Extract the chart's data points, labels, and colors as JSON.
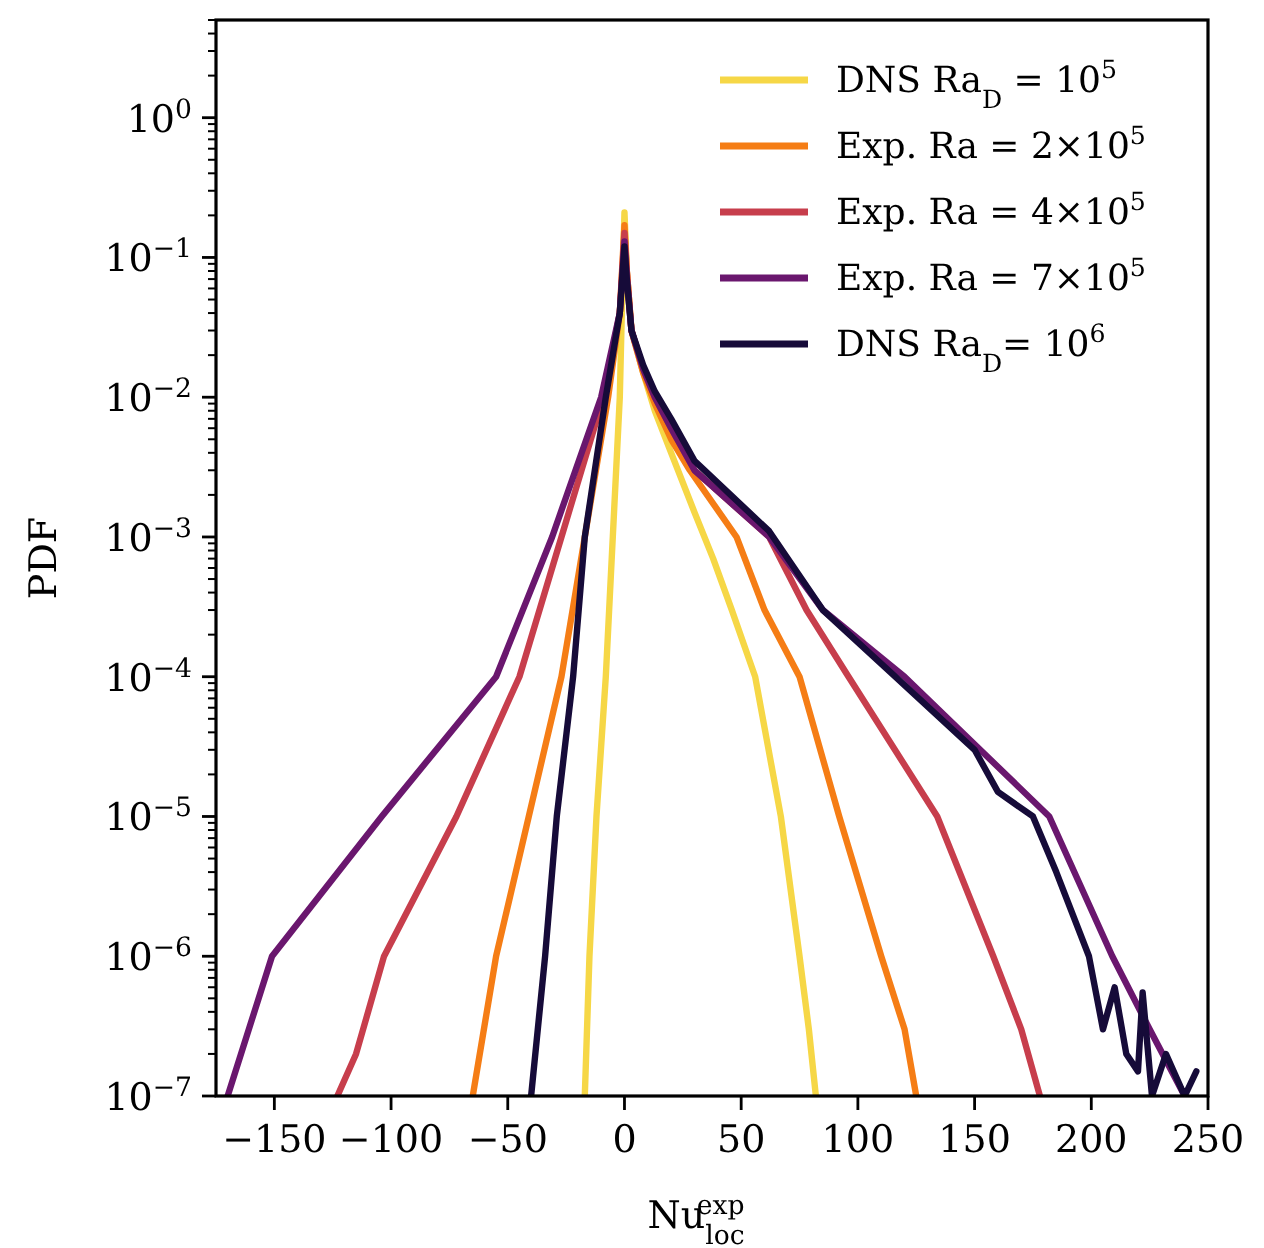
{
  "chart_data": {
    "type": "line",
    "xlabel": "Nu$_{loc}$$^{exp}$",
    "ylabel": "PDF",
    "log": "y",
    "legend": "top right",
    "grid": false,
    "line_style": "solid",
    "marker": "none",
    "xlim": [
      -175,
      250
    ],
    "xticks": [
      {
        "value": -150,
        "label": "−150"
      },
      {
        "value": -100,
        "label": "−100"
      },
      {
        "value": -50,
        "label": "−50"
      },
      0,
      50,
      100,
      150,
      200,
      250
    ],
    "ylim": [
      1e-07,
      5
    ],
    "yticks": [
      {
        "value": 1,
        "label": "10$^{0}$"
      },
      {
        "value": 0.1,
        "label": "10$^{−1}$"
      },
      {
        "value": 0.01,
        "label": "10$^{−2}$"
      },
      {
        "value": 0.001,
        "label": "10$^{−3}$"
      },
      {
        "value": 0.0001,
        "label": "10$^{−4}$"
      },
      {
        "value": 1e-05,
        "label": "10$^{−5}$"
      },
      {
        "value": 1e-06,
        "label": "10$^{−6}$"
      },
      {
        "value": 1e-07,
        "label": "10$^{−7}$"
      },
      {
        "value": 2e-07,
        "label": null
      },
      {
        "value": 3e-07,
        "label": null
      },
      {
        "value": 4e-07,
        "label": null
      },
      {
        "value": 5e-07,
        "label": null
      },
      {
        "value": 6e-07,
        "label": null
      },
      {
        "value": 7e-07,
        "label": null
      },
      {
        "value": 8e-07,
        "label": null
      },
      {
        "value": 9e-07,
        "label": null
      },
      {
        "value": 2e-06,
        "label": null
      },
      {
        "value": 3e-06,
        "label": null
      },
      {
        "value": 4e-06,
        "label": null
      },
      {
        "value": 5e-06,
        "label": null
      },
      {
        "value": 6e-06,
        "label": null
      },
      {
        "value": 7e-06,
        "label": null
      },
      {
        "value": 8e-06,
        "label": null
      },
      {
        "value": 9e-06,
        "label": null
      },
      {
        "value": 2e-05,
        "label": null
      },
      {
        "value": 3e-05,
        "label": null
      },
      {
        "value": 4e-05,
        "label": null
      },
      {
        "value": 5e-05,
        "label": null
      },
      {
        "value": 6e-05,
        "label": null
      },
      {
        "value": 7e-05,
        "label": null
      },
      {
        "value": 8e-05,
        "label": null
      },
      {
        "value": 9e-05,
        "label": null
      },
      {
        "value": 0.0002,
        "label": null
      },
      {
        "value": 0.0003,
        "label": null
      },
      {
        "value": 0.0004,
        "label": null
      },
      {
        "value": 0.0005,
        "label": null
      },
      {
        "value": 0.0006,
        "label": null
      },
      {
        "value": 0.0007,
        "label": null
      },
      {
        "value": 0.0008,
        "label": null
      },
      {
        "value": 0.0009,
        "label": null
      },
      {
        "value": 0.002,
        "label": null
      },
      {
        "value": 0.003,
        "label": null
      },
      {
        "value": 0.004,
        "label": null
      },
      {
        "value": 0.005,
        "label": null
      },
      {
        "value": 0.006,
        "label": null
      },
      {
        "value": 0.007,
        "label": null
      },
      {
        "value": 0.008,
        "label": null
      },
      {
        "value": 0.009,
        "label": null
      },
      {
        "value": 0.02,
        "label": null
      },
      {
        "value": 0.03,
        "label": null
      },
      {
        "value": 0.04,
        "label": null
      },
      {
        "value": 0.05,
        "label": null
      },
      {
        "value": 0.06,
        "label": null
      },
      {
        "value": 0.07,
        "label": null
      },
      {
        "value": 0.08,
        "label": null
      },
      {
        "value": 0.09,
        "label": null
      },
      {
        "value": 0.2,
        "label": null
      },
      {
        "value": 0.3,
        "label": null
      },
      {
        "value": 0.4,
        "label": null
      },
      {
        "value": 0.5,
        "label": null
      },
      {
        "value": 0.6,
        "label": null
      },
      {
        "value": 0.7,
        "label": null
      },
      {
        "value": 0.8,
        "label": null
      },
      {
        "value": 0.9,
        "label": null
      },
      {
        "value": 2,
        "label": null
      },
      {
        "value": 3,
        "label": null
      },
      {
        "value": 4,
        "label": null
      },
      {
        "value": 5,
        "label": null
      }
    ],
    "series": [
      {
        "name": "DNS Ra$_{D}$ = 10$^{5}$",
        "color": "#f6d746",
        "x": [
          -17,
          -15,
          -12,
          -8,
          -5,
          -2,
          -1,
          0,
          1,
          3,
          8,
          13,
          20,
          30,
          38,
          46,
          56,
          67,
          75,
          79,
          82
        ],
        "values": [
          1e-07,
          1e-06,
          1e-05,
          0.0001,
          0.001,
          0.01,
          0.05,
          0.21,
          0.08,
          0.03,
          0.015,
          0.008,
          0.004,
          0.0015,
          0.0007,
          0.0003,
          0.0001,
          1e-05,
          1e-06,
          3e-07,
          1e-07
        ]
      },
      {
        "name": "Exp. Ra = 2×10$^{5}$",
        "color": "#f57d15",
        "x": [
          -65,
          -55,
          -41,
          -27,
          -17,
          -7,
          -2,
          0,
          1,
          3,
          8,
          13,
          20,
          28,
          48,
          60,
          75,
          92,
          110,
          120,
          125
        ],
        "values": [
          1e-07,
          1e-06,
          1e-05,
          0.0001,
          0.001,
          0.01,
          0.04,
          0.17,
          0.08,
          0.03,
          0.015,
          0.009,
          0.005,
          0.003,
          0.001,
          0.0003,
          0.0001,
          1e-05,
          1e-06,
          3e-07,
          1e-07
        ]
      },
      {
        "name": "Exp. Ra = 4×10$^{5}$",
        "color": "#c73e4c",
        "x": [
          -123,
          -115,
          -103,
          -72,
          -45,
          -27,
          -9,
          -2,
          0,
          1,
          3,
          8,
          13,
          20,
          30,
          62,
          78,
          96,
          134,
          158,
          170,
          178
        ],
        "values": [
          1e-07,
          2e-07,
          1e-06,
          1e-05,
          0.0001,
          0.001,
          0.01,
          0.04,
          0.15,
          0.08,
          0.03,
          0.016,
          0.01,
          0.006,
          0.003,
          0.001,
          0.0003,
          0.0001,
          1e-05,
          1e-06,
          3e-07,
          1e-07
        ]
      },
      {
        "name": "Exp. Ra = 7×10$^{5}$",
        "color": "#6a176e",
        "x": [
          -170,
          -151,
          -104,
          -55,
          -31,
          -10,
          -2,
          0,
          1,
          3,
          8,
          13,
          20,
          30,
          62,
          85,
          120,
          182,
          209,
          225,
          240
        ],
        "values": [
          1e-07,
          1e-06,
          1e-05,
          0.0001,
          0.001,
          0.01,
          0.04,
          0.13,
          0.07,
          0.03,
          0.016,
          0.01,
          0.006,
          0.003,
          0.001,
          0.0003,
          0.0001,
          1e-05,
          1e-06,
          3e-07,
          1e-07
        ]
      },
      {
        "name": "DNS Ra$_{D}$= 10$^{6}$",
        "color": "#160b39",
        "x": [
          -40,
          -34,
          -29,
          -22,
          -17,
          -8,
          -2,
          0,
          1,
          3,
          8,
          13,
          20,
          30,
          62,
          85,
          116,
          150,
          160,
          175,
          185,
          199,
          205,
          210,
          215,
          220,
          222,
          226,
          232,
          240,
          245
        ],
        "values": [
          1e-07,
          1e-06,
          1e-05,
          0.0001,
          0.001,
          0.01,
          0.04,
          0.12,
          0.07,
          0.03,
          0.017,
          0.011,
          0.007,
          0.0035,
          0.0011,
          0.0003,
          0.0001,
          3e-05,
          1.5e-05,
          1e-05,
          4e-06,
          1e-06,
          3e-07,
          6e-07,
          2e-07,
          1.5e-07,
          5.5e-07,
          1e-07,
          2e-07,
          1e-07,
          1.5e-07
        ]
      }
    ]
  }
}
